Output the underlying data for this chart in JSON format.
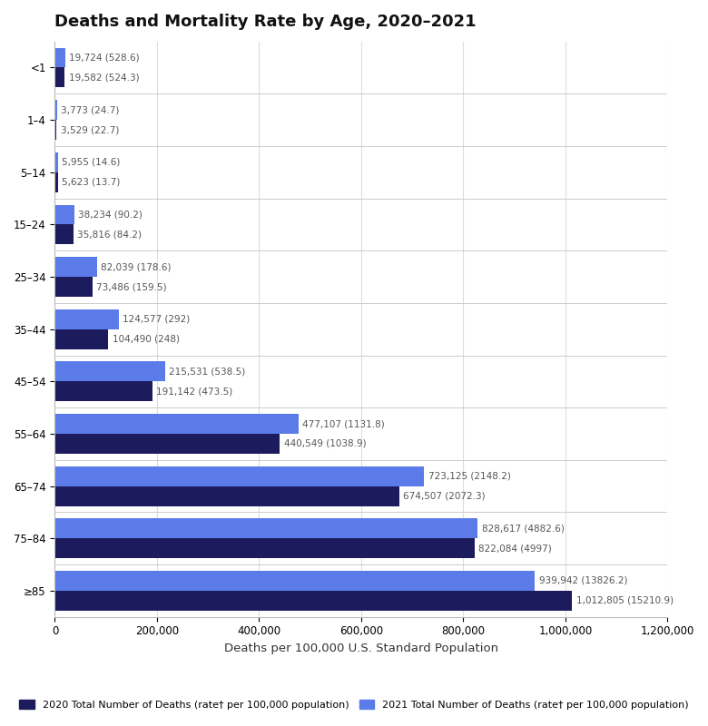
{
  "title": "Deaths and Mortality Rate by Age, 2020–2021",
  "xlabel": "Deaths per 100,000 U.S. Standard Population",
  "age_groups": [
    "<1",
    "1–4",
    "5–14",
    "15–24",
    "25–34",
    "35–44",
    "45–54",
    "55–64",
    "65–74",
    "75–84",
    "≥85"
  ],
  "values_2020": [
    19582,
    3529,
    5623,
    35816,
    73486,
    104490,
    191142,
    440549,
    674507,
    822084,
    1012805
  ],
  "values_2021": [
    19724,
    3773,
    5955,
    38234,
    82039,
    124577,
    215531,
    477107,
    723125,
    828617,
    939942
  ],
  "labels_2020": [
    "19,582 (524.3)",
    "3,529 (22.7)",
    "5,623 (13.7)",
    "35,816 (84.2)",
    "73,486 (159.5)",
    "104,490 (248)",
    "191,142 (473.5)",
    "440,549 (1038.9)",
    "674,507 (2072.3)",
    "822,084 (4997)",
    "1,012,805 (15210.9)"
  ],
  "labels_2021": [
    "19,724 (528.6)",
    "3,773 (24.7)",
    "5,955 (14.6)",
    "38,234 (90.2)",
    "82,039 (178.6)",
    "124,577 (292)",
    "215,531 (538.5)",
    "477,107 (1131.8)",
    "723,125 (2148.2)",
    "828,617 (4882.6)",
    "939,942 (13826.2)"
  ],
  "color_2020": "#1b1b5e",
  "color_2021": "#5b7be8",
  "legend_2020": "2020 Total Number of Deaths (rate† per 100,000 population)",
  "legend_2021": "2021 Total Number of Deaths (rate† per 100,000 population)",
  "xlim": [
    0,
    1200000
  ],
  "background_color": "#ffffff",
  "bar_height": 0.38,
  "title_fontsize": 13,
  "label_fontsize": 7.5,
  "tick_fontsize": 8.5,
  "xlabel_fontsize": 9.5
}
